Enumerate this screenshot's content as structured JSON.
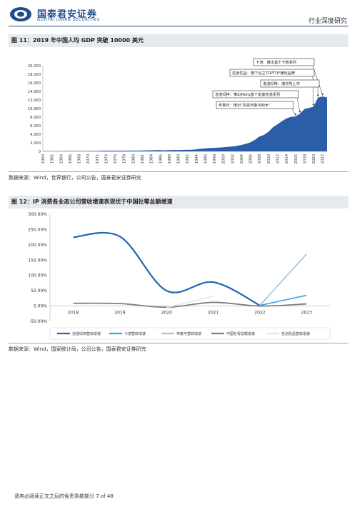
{
  "header": {
    "brand_cn": "国泰君安证券",
    "brand_en": "GUOTAI JUNAN SECURITIES",
    "report_type": "行业深度研究",
    "accent": "#1f4e8c"
  },
  "figure1": {
    "title": "图 11：2019 年中国人均 GDP 突破 10000 美元",
    "source": "数据来源：Wind，世界银行，公司公告，国泰君安证券研究"
  },
  "figure2": {
    "title": "图 12：IP 消费各业态公司营收增速表现优于中国社零总额增速",
    "source": "数据来源：Wind，国家统计局，公司公告，国泰君安证券研究"
  },
  "footer": {
    "text": "请务必阅读正文之后的免责条款部分  7 of 48"
  },
  "chart_data": [
    {
      "type": "area",
      "color": "#2b5da8",
      "x": [
        1960,
        1961,
        1962,
        1963,
        1964,
        1965,
        1966,
        1967,
        1968,
        1969,
        1970,
        1971,
        1972,
        1973,
        1974,
        1975,
        1976,
        1977,
        1978,
        1979,
        1980,
        1981,
        1982,
        1983,
        1984,
        1985,
        1986,
        1987,
        1988,
        1989,
        1990,
        1991,
        1992,
        1993,
        1994,
        1995,
        1996,
        1997,
        1998,
        1999,
        2000,
        2001,
        2002,
        2003,
        2004,
        2005,
        2006,
        2007,
        2008,
        2009,
        2010,
        2011,
        2012,
        2013,
        2014,
        2015,
        2016,
        2017,
        2018,
        2019,
        2020,
        2021,
        2022,
        2023
      ],
      "values": [
        90,
        75,
        70,
        74,
        85,
        98,
        104,
        96,
        91,
        100,
        113,
        118,
        131,
        157,
        160,
        178,
        165,
        185,
        156,
        183,
        195,
        197,
        203,
        225,
        250,
        294,
        281,
        252,
        284,
        311,
        318,
        333,
        366,
        377,
        473,
        610,
        709,
        781,
        828,
        873,
        959,
        1053,
        1149,
        1289,
        1509,
        1753,
        2099,
        2694,
        3468,
        3832,
        4550,
        5618,
        6317,
        7051,
        7679,
        8067,
        8148,
        8817,
        9905,
        10144,
        10409,
        12556,
        12814,
        12614
      ],
      "xticks": [
        "1960",
        "1962",
        "1964",
        "1966",
        "1968",
        "1970",
        "1972",
        "1974",
        "1976",
        "1978",
        "1980",
        "1982",
        "1984",
        "1986",
        "1988",
        "1990",
        "1992",
        "1994",
        "1996",
        "1998",
        "2000",
        "2002",
        "2004",
        "2006",
        "2008",
        "2010",
        "2012",
        "2014",
        "2016",
        "2018",
        "2020",
        "2022"
      ],
      "ylim": [
        0,
        20000
      ],
      "yticks": [
        "0",
        "2,000",
        "4,000",
        "6,000",
        "8,000",
        "10,000",
        "12,000",
        "14,000",
        "16,000",
        "18,000",
        "20,000"
      ],
      "annotations": [
        {
          "text": "卡游：推出首个卡牌系列",
          "year": 2022
        },
        {
          "text": "名创优品：旗下设立TOPTOY潮玩品牌",
          "year": 2020
        },
        {
          "text": "泡泡玛特：港交所上市",
          "year": 2021
        },
        {
          "text": "泡泡玛特：推出Molly首个星座盲盒系列",
          "year": 2017
        },
        {
          "text": "布鲁可：推出“百变布鲁可积木”",
          "year": 2016
        }
      ]
    },
    {
      "type": "line",
      "categories": [
        "2018",
        "2019",
        "2020",
        "2021",
        "2022",
        "2023"
      ],
      "ylim": [
        -50,
        300
      ],
      "yticks": [
        "-50.00%",
        "0.00%",
        "50.00%",
        "100.00%",
        "150.00%",
        "200.00%",
        "250.00%",
        "300.00%"
      ],
      "series": [
        {
          "name": "泡泡玛特营收增速",
          "color": "#2166b0",
          "values": [
            225,
            227,
            50,
            78,
            2,
            null
          ]
        },
        {
          "name": "卡游营收增速",
          "color": "#35a4e0",
          "values": [
            null,
            null,
            null,
            null,
            2,
            35
          ]
        },
        {
          "name": "布鲁可营收增速",
          "color": "#9cc3e4",
          "values": [
            null,
            null,
            null,
            null,
            2,
            170
          ]
        },
        {
          "name": "中国社零总额增速",
          "color": "#7f7f7f",
          "values": [
            9,
            8,
            -4,
            12,
            0,
            7
          ]
        },
        {
          "name": "名创优品营收增速",
          "color": "#dbe8f4",
          "values": [
            null,
            null,
            -5,
            32,
            null,
            null
          ]
        }
      ]
    }
  ]
}
